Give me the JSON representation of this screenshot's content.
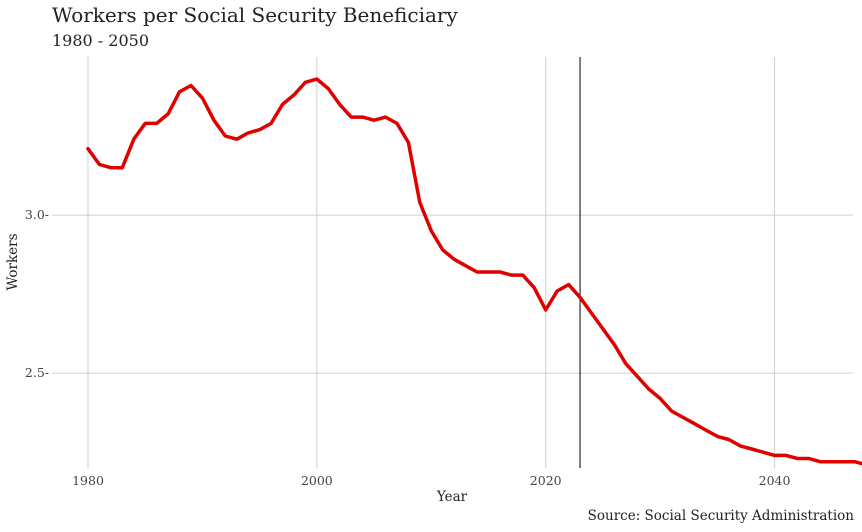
{
  "chart_data": {
    "type": "line",
    "title": "Workers per Social Security Beneficiary",
    "subtitle": "1980 - 2050",
    "xlabel": "Year",
    "ylabel": "Workers",
    "caption": "Source: Social Security Administration",
    "xlim": [
      1980,
      2050
    ],
    "ylim": [
      2.2,
      3.5
    ],
    "x_ticks": [
      1980,
      2000,
      2020,
      2040
    ],
    "y_ticks": [
      2.5,
      3.0
    ],
    "y_tick_labels": [
      "2.5-",
      "3.0-"
    ],
    "grid": true,
    "reference_line_x": 2023,
    "series": [
      {
        "color": "#e00000",
        "x": [
          1980,
          1981,
          1982,
          1983,
          1984,
          1985,
          1986,
          1987,
          1988,
          1989,
          1990,
          1991,
          1992,
          1993,
          1994,
          1995,
          1996,
          1997,
          1998,
          1999,
          2000,
          2001,
          2002,
          2003,
          2004,
          2005,
          2006,
          2007,
          2008,
          2009,
          2010,
          2011,
          2012,
          2013,
          2014,
          2015,
          2016,
          2017,
          2018,
          2019,
          2020,
          2021,
          2022,
          2023,
          2024,
          2025,
          2026,
          2027,
          2028,
          2029,
          2030,
          2031,
          2032,
          2033,
          2034,
          2035,
          2036,
          2037,
          2038,
          2039,
          2040,
          2041,
          2042,
          2043,
          2044,
          2045,
          2046,
          2047,
          2048,
          2049,
          2050
        ],
        "values": [
          3.21,
          3.16,
          3.15,
          3.15,
          3.24,
          3.29,
          3.29,
          3.32,
          3.39,
          3.41,
          3.37,
          3.3,
          3.25,
          3.24,
          3.26,
          3.27,
          3.29,
          3.35,
          3.38,
          3.42,
          3.43,
          3.4,
          3.35,
          3.31,
          3.31,
          3.3,
          3.31,
          3.29,
          3.23,
          3.04,
          2.95,
          2.89,
          2.86,
          2.84,
          2.82,
          2.82,
          2.82,
          2.81,
          2.81,
          2.77,
          2.7,
          2.76,
          2.78,
          2.74,
          2.69,
          2.64,
          2.59,
          2.53,
          2.49,
          2.45,
          2.42,
          2.38,
          2.36,
          2.34,
          2.32,
          2.3,
          2.29,
          2.27,
          2.26,
          2.25,
          2.24,
          2.24,
          2.23,
          2.23,
          2.22,
          2.22,
          2.22,
          2.22,
          2.21,
          2.21,
          2.21
        ]
      }
    ]
  }
}
